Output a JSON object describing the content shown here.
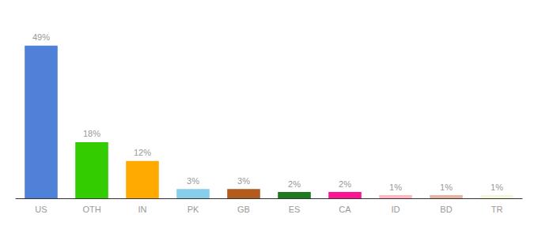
{
  "chart_data": {
    "type": "bar",
    "categories": [
      "US",
      "OTH",
      "IN",
      "PK",
      "GB",
      "ES",
      "CA",
      "ID",
      "BD",
      "TR"
    ],
    "values": [
      49,
      18,
      12,
      3,
      3,
      2,
      2,
      1,
      1,
      1
    ],
    "value_labels": [
      "49%",
      "18%",
      "12%",
      "3%",
      "3%",
      "2%",
      "2%",
      "1%",
      "1%",
      "1%"
    ],
    "colors": [
      "#4f81d9",
      "#33cc00",
      "#ffaa00",
      "#87ceeb",
      "#b35a1f",
      "#1e7a1e",
      "#ff1493",
      "#ffb6c1",
      "#e8b4a0",
      "#f5f5dc"
    ],
    "ylim": [
      0,
      56
    ],
    "data_labels": true,
    "tick_labels": "x",
    "grid": false
  }
}
